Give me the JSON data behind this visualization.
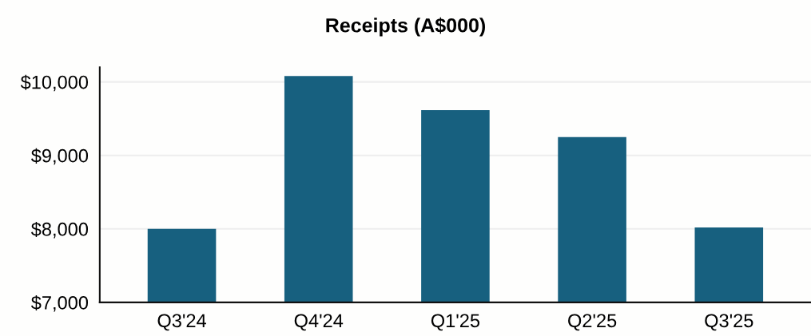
{
  "chart_data": {
    "type": "bar",
    "title": "Receipts (A$000)",
    "categories": [
      "Q3'24",
      "Q4'24",
      "Q1'25",
      "Q2'25",
      "Q3'25"
    ],
    "values": [
      8000,
      10080,
      9615,
      9250,
      8020
    ],
    "color": "#17607f",
    "ylim": [
      7000,
      10200
    ],
    "yticks": [
      {
        "value": 7000,
        "label": "$7,000"
      },
      {
        "value": 8000,
        "label": "$8,000"
      },
      {
        "value": 9000,
        "label": "$9,000"
      },
      {
        "value": 10000,
        "label": "$10,000"
      }
    ],
    "grid": "y"
  }
}
